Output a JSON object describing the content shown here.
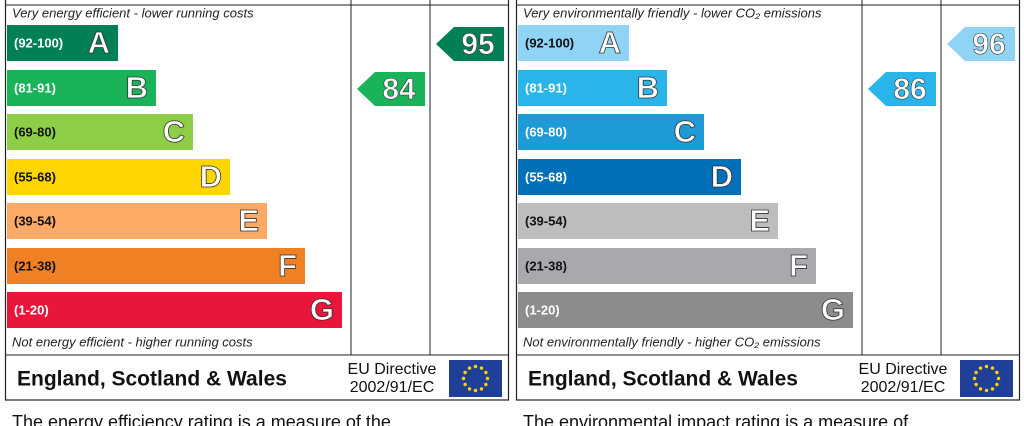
{
  "panels": [
    {
      "top_note": "Very energy efficient - lower running costs",
      "bottom_note": "Not energy efficient - higher running costs",
      "bands": [
        {
          "range": "(92-100)",
          "letter": "A",
          "color": "#008054"
        },
        {
          "range": "(81-91)",
          "letter": "B",
          "color": "#19b459"
        },
        {
          "range": "(69-80)",
          "letter": "C",
          "color": "#8dce46"
        },
        {
          "range": "(55-68)",
          "letter": "D",
          "color": "#ffd500"
        },
        {
          "range": "(39-54)",
          "letter": "E",
          "color": "#fcaa65"
        },
        {
          "range": "(21-38)",
          "letter": "F",
          "color": "#ef8023"
        },
        {
          "range": "(1-20)",
          "letter": "G",
          "color": "#e9153b"
        }
      ],
      "current": 84,
      "current_color": "#19b459",
      "potential": 95,
      "potential_color": "#008054",
      "region": "England, Scotland & Wales",
      "directive": [
        "EU Directive",
        "2002/91/EC"
      ],
      "caption": "The energy efficiency rating is a measure of the"
    },
    {
      "top_note": "Very environmentally friendly - lower CO₂ emissions",
      "bottom_note": "Not environmentally friendly - higher CO₂ emissions",
      "bands": [
        {
          "range": "(92-100)",
          "letter": "A",
          "color": "#8fd3f5"
        },
        {
          "range": "(81-91)",
          "letter": "B",
          "color": "#2ab5ea"
        },
        {
          "range": "(69-80)",
          "letter": "C",
          "color": "#1e9ad6"
        },
        {
          "range": "(55-68)",
          "letter": "D",
          "color": "#0070b8"
        },
        {
          "range": "(39-54)",
          "letter": "E",
          "color": "#bbbdbf"
        },
        {
          "range": "(21-38)",
          "letter": "F",
          "color": "#a7a9ac"
        },
        {
          "range": "(1-20)",
          "letter": "G",
          "color": "#8a8c8e"
        }
      ],
      "current": 86,
      "current_color": "#2ab5ea",
      "potential": 96,
      "potential_color": "#8fd3f5",
      "region": "England, Scotland & Wales",
      "directive": [
        "EU Directive",
        "2002/91/EC"
      ],
      "caption": "The environmental impact rating is a measure of"
    }
  ]
}
